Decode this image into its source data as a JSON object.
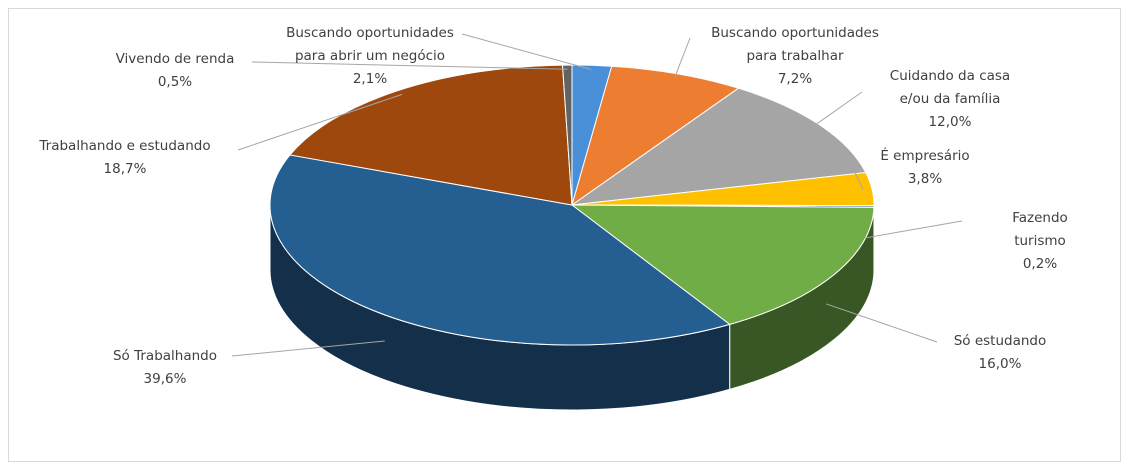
{
  "chart_data": {
    "type": "pie3d",
    "categories": [
      "Buscando oportunidades\npara abrir um negócio",
      "Buscando oportunidades\npara trabalhar",
      "Cuidando  da casa\ne/ou da família",
      "É empresário",
      "Fazendo turismo",
      "Só estudando",
      "Só Trabalhando",
      "Trabalhando  e estudando",
      "Vivendo de renda"
    ],
    "values": [
      2.1,
      7.2,
      12.0,
      3.8,
      0.2,
      16.0,
      39.6,
      18.7,
      0.5
    ],
    "value_labels": [
      "2,1%",
      "7,2%",
      "12,0%",
      "3,8%",
      "0,2%",
      "16,0%",
      "39,6%",
      "18,7%",
      "0,5%"
    ],
    "colors": [
      "#4a90d9",
      "#ed7d31",
      "#a5a5a5",
      "#ffc000",
      "#4472c4",
      "#70ad47",
      "#255e91",
      "#9e480e",
      "#636363"
    ]
  }
}
